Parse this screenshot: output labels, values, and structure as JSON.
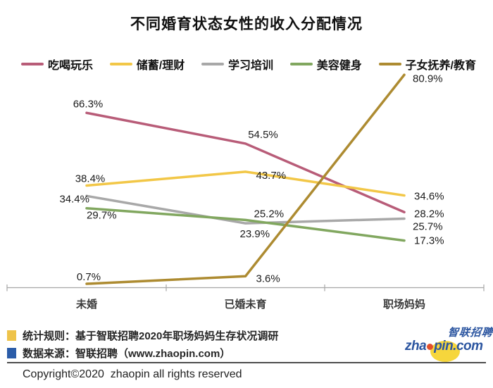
{
  "title": "不同婚育状态女性的收入分配情况",
  "chart_data": {
    "type": "line",
    "categories": [
      "未婚",
      "已婚未育",
      "职场妈妈"
    ],
    "series": [
      {
        "name": "吃喝玩乐",
        "color": "#b85c78",
        "values": [
          66.3,
          54.5,
          28.2
        ]
      },
      {
        "name": "储蓄/理财",
        "color": "#f2c747",
        "values": [
          38.4,
          43.7,
          34.6
        ]
      },
      {
        "name": "学习培训",
        "color": "#a8a8a8",
        "values": [
          34.4,
          23.9,
          25.7
        ]
      },
      {
        "name": "美容健身",
        "color": "#81a75f",
        "values": [
          29.7,
          25.2,
          17.3
        ]
      },
      {
        "name": "子女抚养/教育",
        "color": "#ad8b31",
        "values": [
          0.7,
          3.6,
          80.9
        ]
      }
    ],
    "label_format": "{value}%",
    "ylim": [
      0,
      85
    ],
    "grid": false,
    "legend_position": "top",
    "xlabel": "",
    "ylabel": ""
  },
  "footer": {
    "note1": "统计规则：基于智联招聘2020年职场妈妈生存状况调研",
    "note1_marker_color": "#eec34a",
    "note2": "数据来源：智联招聘（www.zhaopin.com）",
    "note2_marker_color": "#2b5ca8",
    "copyright": "Copyright©2020  zhaopin all rights reserved",
    "logo": {
      "text_pre": "zha",
      "text_post": "pin.com",
      "cn": "智联招聘",
      "brand_blue": "#2b55a0",
      "brand_yellow": "#f6d63c",
      "dot_color": "#e2502c"
    }
  }
}
